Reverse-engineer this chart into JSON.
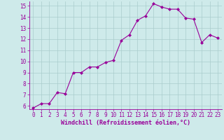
{
  "x": [
    0,
    1,
    2,
    3,
    4,
    5,
    6,
    7,
    8,
    9,
    10,
    11,
    12,
    13,
    14,
    15,
    16,
    17,
    18,
    19,
    20,
    21,
    22,
    23
  ],
  "y": [
    5.8,
    6.2,
    6.2,
    7.2,
    7.1,
    9.0,
    9.0,
    9.5,
    9.5,
    9.9,
    10.1,
    11.9,
    12.4,
    13.7,
    14.1,
    15.2,
    14.9,
    14.7,
    14.7,
    13.9,
    13.8,
    11.7,
    12.4,
    12.1
  ],
  "line_color": "#990099",
  "marker": "D",
  "marker_size": 2.0,
  "bg_color": "#ceeaea",
  "grid_color": "#aacccc",
  "xlabel": "Windchill (Refroidissement éolien,°C)",
  "ylim_min": 5.7,
  "ylim_max": 15.4,
  "xlim_min": -0.5,
  "xlim_max": 23.5,
  "yticks": [
    6,
    7,
    8,
    9,
    10,
    11,
    12,
    13,
    14,
    15
  ],
  "xticks": [
    0,
    1,
    2,
    3,
    4,
    5,
    6,
    7,
    8,
    9,
    10,
    11,
    12,
    13,
    14,
    15,
    16,
    17,
    18,
    19,
    20,
    21,
    22,
    23
  ],
  "tick_fontsize": 5.5,
  "xlabel_fontsize": 6.0,
  "line_width": 0.8
}
